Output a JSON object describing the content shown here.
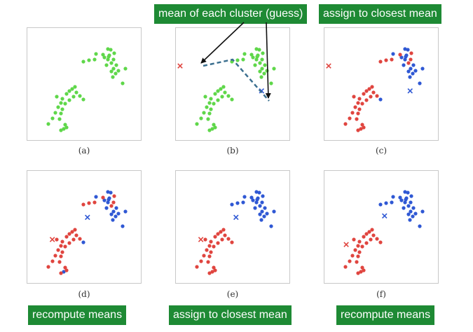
{
  "banners": {
    "mean_guess": "mean of each cluster (guess)",
    "assign_top": "assign to closest mean",
    "recompute_left": "recompute means",
    "assign_bottom": "assign to closest mean",
    "recompute_right": "recompute means"
  },
  "colors": {
    "green": "#5fd74a",
    "red": "#e0453f",
    "blue": "#2f58d4",
    "banner": "#1e8a34",
    "arrow": "#111111",
    "dashed_line": "#3b6f8f"
  },
  "points": {
    "cluster_upper": [
      [
        98,
        37
      ],
      [
        115,
        30
      ],
      [
        119,
        31
      ],
      [
        117,
        39
      ],
      [
        115,
        45
      ],
      [
        113,
        53
      ],
      [
        96,
        45
      ],
      [
        88,
        46
      ],
      [
        80,
        48
      ],
      [
        120,
        50
      ],
      [
        123,
        45
      ],
      [
        127,
        53
      ],
      [
        123,
        58
      ],
      [
        120,
        62
      ],
      [
        130,
        61
      ],
      [
        140,
        58
      ],
      [
        136,
        79
      ],
      [
        126,
        65
      ],
      [
        122,
        70
      ],
      [
        116,
        41
      ],
      [
        110,
        42
      ],
      [
        108,
        38
      ],
      [
        124,
        36
      ]
    ],
    "cluster_lower": [
      [
        30,
        137
      ],
      [
        36,
        129
      ],
      [
        40,
        121
      ],
      [
        44,
        113
      ],
      [
        48,
        107
      ],
      [
        50,
        101
      ],
      [
        56,
        94
      ],
      [
        60,
        90
      ],
      [
        64,
        87
      ],
      [
        68,
        84
      ],
      [
        70,
        92
      ],
      [
        66,
        98
      ],
      [
        60,
        103
      ],
      [
        54,
        108
      ],
      [
        50,
        116
      ],
      [
        48,
        122
      ],
      [
        46,
        130
      ],
      [
        54,
        138
      ],
      [
        52,
        144
      ],
      [
        56,
        142
      ],
      [
        48,
        146
      ],
      [
        75,
        97
      ],
      [
        80,
        102
      ],
      [
        42,
        98
      ]
    ]
  },
  "panels": [
    {
      "caption": "(a)",
      "groups": {
        "cluster_upper": "green",
        "cluster_lower": "green"
      },
      "means": [],
      "recolor": []
    },
    {
      "caption": "(b)",
      "groups": {
        "cluster_upper": "green",
        "cluster_lower": "green"
      },
      "means": [
        {
          "color": "red",
          "x": 0.0,
          "y": 9.6
        },
        {
          "color": "blue",
          "x": 10.2,
          "y": 6.1
        }
      ],
      "recolor": []
    },
    {
      "caption": "(c)",
      "groups": {
        "cluster_upper": "blue",
        "cluster_lower": "red"
      },
      "means": [
        {
          "color": "red",
          "x": 0.0,
          "y": 9.6
        },
        {
          "color": "blue",
          "x": 10.2,
          "y": 6.1
        }
      ],
      "recolor": [
        {
          "set": "cluster_upper",
          "indices": [
            6,
            7,
            8,
            9,
            10,
            21,
            22
          ],
          "color": "red"
        },
        {
          "set": "cluster_lower",
          "indices": [
            22
          ],
          "color": "blue"
        }
      ]
    },
    {
      "caption": "(d)",
      "groups": {
        "cluster_upper": "blue",
        "cluster_lower": "red"
      },
      "means": [
        {
          "color": "red",
          "x": 2.6,
          "y": 5.3
        },
        {
          "color": "blue",
          "x": 7.0,
          "y": 8.4
        }
      ],
      "recolor": [
        {
          "set": "cluster_upper",
          "indices": [
            6,
            7,
            8,
            9,
            10,
            21,
            22
          ],
          "color": "red"
        },
        {
          "set": "cluster_lower",
          "indices": [
            22,
            18
          ],
          "color": "blue"
        }
      ]
    },
    {
      "caption": "(e)",
      "groups": {
        "cluster_upper": "blue",
        "cluster_lower": "red"
      },
      "means": [
        {
          "color": "red",
          "x": 2.6,
          "y": 5.3
        },
        {
          "color": "blue",
          "x": 7.0,
          "y": 8.4
        }
      ],
      "recolor": []
    },
    {
      "caption": "(f)",
      "groups": {
        "cluster_upper": "blue",
        "cluster_lower": "red"
      },
      "means": [
        {
          "color": "red",
          "x": 2.2,
          "y": 4.6
        },
        {
          "color": "blue",
          "x": 7.0,
          "y": 8.6
        }
      ],
      "recolor": []
    }
  ]
}
